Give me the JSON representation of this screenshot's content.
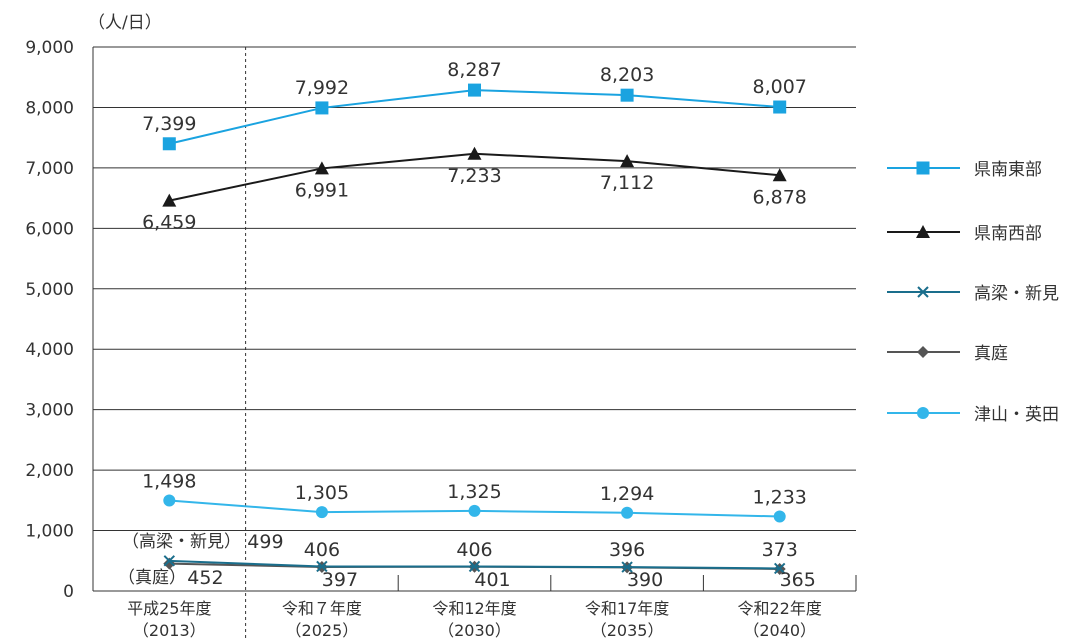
{
  "chart_data": {
    "type": "line",
    "y_unit": "（人/日）",
    "ylim": [
      0,
      9000
    ],
    "y_ticks": [
      "0",
      "1,000",
      "2,000",
      "3,000",
      "4,000",
      "5,000",
      "6,000",
      "7,000",
      "8,000",
      "9,000"
    ],
    "grid": true,
    "legend_position": "right",
    "categories": [
      {
        "line1": "平成25年度",
        "line2": "（2013）"
      },
      {
        "line1": "令和７年度",
        "line2": "（2025）"
      },
      {
        "line1": "令和12年度",
        "line2": "（2030）"
      },
      {
        "line1": "令和17年度",
        "line2": "（2035）"
      },
      {
        "line1": "令和22年度",
        "line2": "（2040）"
      }
    ],
    "series": [
      {
        "name": "県南東部",
        "color": "#1aa3e0",
        "marker": "square",
        "values": [
          7399,
          7992,
          8287,
          8203,
          8007
        ],
        "labels": [
          "7,399",
          "7,992",
          "8,287",
          "8,203",
          "8,007"
        ]
      },
      {
        "name": "県南西部",
        "color": "#1a1a1a",
        "marker": "triangle",
        "values": [
          6459,
          6991,
          7233,
          7112,
          6878
        ],
        "labels": [
          "6,459",
          "6,991",
          "7,233",
          "7,112",
          "6,878"
        ]
      },
      {
        "name": "高梁・新見",
        "color": "#1a6e8c",
        "marker": "x",
        "values": [
          499,
          406,
          406,
          396,
          373
        ],
        "labels": [
          "499",
          "406",
          "406",
          "396",
          "373"
        ]
      },
      {
        "name": "真庭",
        "color": "#555555",
        "marker": "diamond",
        "values": [
          452,
          397,
          401,
          390,
          365
        ],
        "labels": [
          "452",
          "397",
          "401",
          "390",
          "365"
        ]
      },
      {
        "name": "津山・英田",
        "color": "#33b6ea",
        "marker": "circle",
        "values": [
          1498,
          1305,
          1325,
          1294,
          1233
        ],
        "labels": [
          "1,498",
          "1,305",
          "1,325",
          "1,294",
          "1,233"
        ]
      }
    ],
    "annotations": [
      {
        "text": "（高梁・新見）",
        "series": "高梁・新見"
      },
      {
        "text": "（真庭）",
        "series": "真庭"
      }
    ]
  }
}
